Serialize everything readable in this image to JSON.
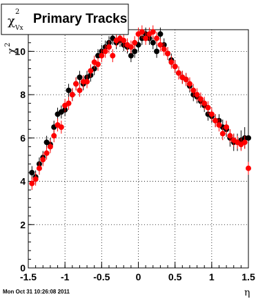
{
  "chart_data": {
    "type": "scatter",
    "title": "Primary Tracks",
    "ylabel_symbol": "χ",
    "ylabel_sup": "2",
    "ylabel_sub": "Vx",
    "xlabel": "η",
    "xlim": [
      -1.5,
      1.5
    ],
    "ylim": [
      0,
      11
    ],
    "x_ticks": [
      "-1.5",
      "-1",
      "-0.5",
      "0",
      "0.5",
      "1",
      "1.5"
    ],
    "x_tick_values": [
      -1.5,
      -1,
      -0.5,
      0,
      0.5,
      1,
      1.5
    ],
    "y_ticks": [
      "0",
      "2",
      "4",
      "6",
      "8",
      "10"
    ],
    "y_tick_values": [
      0,
      2,
      4,
      6,
      8,
      10
    ],
    "grid": true,
    "series": [
      {
        "color": "#000000",
        "x": [
          -1.45,
          -1.4,
          -1.35,
          -1.3,
          -1.25,
          -1.2,
          -1.15,
          -1.1,
          -1.05,
          -1.0,
          -0.95,
          -0.9,
          -0.85,
          -0.8,
          -0.75,
          -0.7,
          -0.65,
          -0.6,
          -0.55,
          -0.5,
          -0.45,
          -0.4,
          -0.35,
          -0.3,
          -0.25,
          -0.2,
          -0.15,
          -0.1,
          -0.05,
          0.0,
          0.05,
          0.1,
          0.15,
          0.2,
          0.25,
          0.3,
          0.35,
          0.4,
          0.45,
          0.5,
          0.55,
          0.6,
          0.65,
          0.7,
          0.75,
          0.8,
          0.85,
          0.9,
          0.95,
          1.0,
          1.05,
          1.1,
          1.15,
          1.2,
          1.25,
          1.3,
          1.35,
          1.4,
          1.45,
          1.5
        ],
        "y": [
          4.4,
          4.2,
          4.8,
          5.1,
          5.8,
          5.7,
          6.5,
          7.1,
          7.2,
          7.3,
          8.2,
          8.0,
          8.5,
          8.8,
          8.5,
          8.8,
          8.9,
          9.2,
          9.8,
          10.0,
          10.2,
          10.4,
          10.6,
          10.4,
          10.5,
          10.3,
          10.2,
          9.8,
          10.0,
          10.3,
          10.6,
          10.8,
          10.6,
          10.4,
          10.0,
          10.8,
          10.3,
          9.9,
          9.6,
          9.3,
          9.0,
          8.8,
          8.7,
          8.4,
          8.0,
          7.9,
          7.7,
          7.5,
          7.1,
          7.0,
          6.8,
          6.8,
          6.5,
          6.4,
          6.0,
          5.8,
          5.8,
          5.9,
          6.0,
          6.0
        ],
        "err": [
          0.3,
          0.3,
          0.3,
          0.3,
          0.3,
          0.3,
          0.3,
          0.3,
          0.3,
          0.3,
          0.3,
          0.3,
          0.3,
          0.3,
          0.3,
          0.3,
          0.3,
          0.3,
          0.3,
          0.3,
          0.3,
          0.3,
          0.3,
          0.3,
          0.3,
          0.3,
          0.3,
          0.3,
          0.3,
          0.3,
          0.3,
          0.3,
          0.3,
          0.3,
          0.3,
          0.3,
          0.3,
          0.3,
          0.3,
          0.3,
          0.3,
          0.3,
          0.3,
          0.3,
          0.3,
          0.3,
          0.3,
          0.3,
          0.3,
          0.3,
          0.3,
          0.3,
          0.35,
          0.35,
          0.4,
          0.4,
          0.4,
          0.45,
          0.5,
          0.55
        ]
      },
      {
        "color": "#ff0000",
        "x": [
          -1.45,
          -1.4,
          -1.35,
          -1.3,
          -1.25,
          -1.2,
          -1.15,
          -1.1,
          -1.05,
          -1.0,
          -0.95,
          -0.9,
          -0.85,
          -0.8,
          -0.75,
          -0.7,
          -0.65,
          -0.6,
          -0.55,
          -0.5,
          -0.45,
          -0.4,
          -0.35,
          -0.3,
          -0.25,
          -0.2,
          -0.15,
          -0.1,
          -0.05,
          0.0,
          0.05,
          0.1,
          0.15,
          0.2,
          0.25,
          0.3,
          0.35,
          0.4,
          0.45,
          0.5,
          0.55,
          0.6,
          0.65,
          0.7,
          0.75,
          0.8,
          0.85,
          0.9,
          0.95,
          1.0,
          1.05,
          1.1,
          1.15,
          1.2,
          1.25,
          1.3,
          1.35,
          1.4,
          1.45,
          1.5
        ],
        "y": [
          3.9,
          4.1,
          4.6,
          5.0,
          5.3,
          5.6,
          6.1,
          6.6,
          6.5,
          7.5,
          7.6,
          8.0,
          8.5,
          8.2,
          8.6,
          8.6,
          9.1,
          9.5,
          9.4,
          9.8,
          10.0,
          10.2,
          9.8,
          10.5,
          10.6,
          10.5,
          10.3,
          10.2,
          10.4,
          10.8,
          10.9,
          10.6,
          10.8,
          10.9,
          10.6,
          10.3,
          10.1,
          9.9,
          9.5,
          9.3,
          9.0,
          8.8,
          8.7,
          8.5,
          8.2,
          8.0,
          7.8,
          7.6,
          7.4,
          7.1,
          6.8,
          6.6,
          6.2,
          6.5,
          6.1,
          5.9,
          5.8,
          5.7,
          5.8,
          4.6
        ]
      }
    ]
  },
  "footer": "Mon Oct 31 10:26:08 2011"
}
